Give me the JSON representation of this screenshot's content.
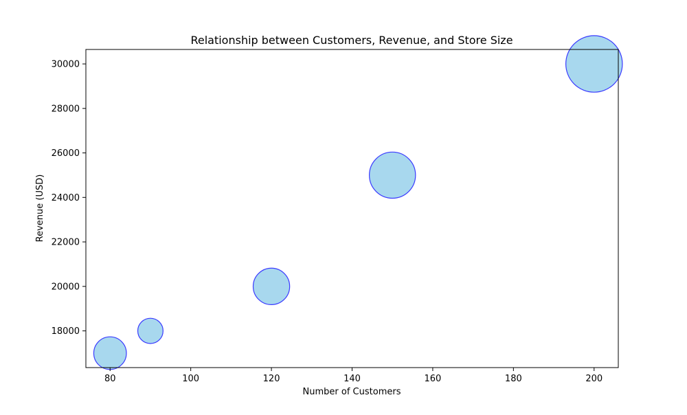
{
  "chart_data": {
    "type": "scatter",
    "title": "Relationship between Customers, Revenue, and Store Size",
    "xlabel": "Number of Customers",
    "ylabel": "Revenue (USD)",
    "xlim": [
      74,
      206
    ],
    "ylim": [
      16350,
      30650
    ],
    "x_ticks": [
      80,
      100,
      120,
      140,
      160,
      180,
      200
    ],
    "y_ticks": [
      18000,
      20000,
      22000,
      24000,
      26000,
      28000,
      30000
    ],
    "x_tick_labels": [
      "80",
      "100",
      "120",
      "140",
      "160",
      "180",
      "200"
    ],
    "y_tick_labels": [
      "18000",
      "20000",
      "22000",
      "24000",
      "26000",
      "28000",
      "30000"
    ],
    "grid": false,
    "points": [
      {
        "x": 80,
        "y": 17000,
        "size": 2
      },
      {
        "x": 90,
        "y": 18000,
        "size": 1.2
      },
      {
        "x": 120,
        "y": 20000,
        "size": 2.5
      },
      {
        "x": 150,
        "y": 25000,
        "size": 4
      },
      {
        "x": 200,
        "y": 30000,
        "size": 6
      }
    ],
    "marker_fill": "#a8d8ee",
    "marker_edge": "#3a3aff"
  }
}
